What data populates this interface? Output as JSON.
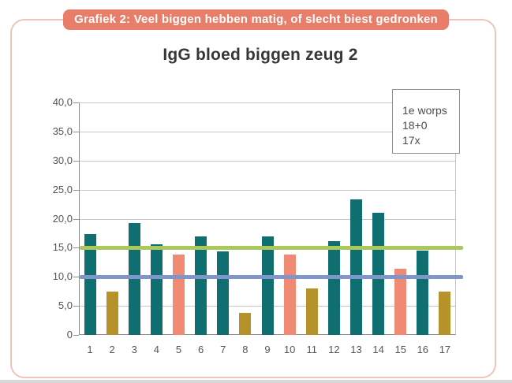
{
  "banner": {
    "label": "Grafiek 2: Veel biggen hebben matig, of slecht biest gedronken"
  },
  "chart": {
    "title": "IgG bloed biggen zeug 2"
  },
  "colors": {
    "banner_bg": "#e87d6a",
    "card_border": "#eec5b8",
    "teal": "#0e6e70",
    "olive": "#b6922b",
    "salmon": "#f08a74",
    "green_line": "#abc95a",
    "blue_line": "#8096c8"
  },
  "chart_data": {
    "type": "bar",
    "title": "IgG bloed biggen zeug 2",
    "xlabel": "",
    "ylabel": "",
    "categories": [
      "1",
      "2",
      "3",
      "4",
      "5",
      "6",
      "7",
      "8",
      "9",
      "10",
      "11",
      "12",
      "13",
      "14",
      "15",
      "16",
      "17"
    ],
    "values": [
      17.4,
      7.4,
      19.2,
      15.6,
      13.8,
      16.9,
      14.4,
      3.8,
      16.9,
      13.8,
      8.0,
      16.2,
      23.3,
      21.0,
      11.4,
      14.5,
      7.4
    ],
    "bar_colors": [
      "teal",
      "olive",
      "teal",
      "teal",
      "salmon",
      "teal",
      "teal",
      "olive",
      "teal",
      "salmon",
      "olive",
      "teal",
      "teal",
      "teal",
      "salmon",
      "teal",
      "olive"
    ],
    "series_colors": {
      "teal": "#0e6e70",
      "olive": "#b6922b",
      "salmon": "#f08a74"
    },
    "reference_lines": [
      {
        "name": "green",
        "value": 15.0,
        "color": "#abc95a"
      },
      {
        "name": "blue",
        "value": 10.0,
        "color": "#8096c8"
      }
    ],
    "ylim": [
      0,
      40
    ],
    "ytick_step": 5,
    "ytick_labels": [
      "0",
      "5,0",
      "10,0",
      "15,0",
      "20,0",
      "25,0",
      "30,0",
      "35,0",
      "40,0"
    ],
    "grid": true,
    "legend_position": "top-right",
    "legend_box": [
      "1e worps",
      "18+0",
      "17x"
    ]
  }
}
